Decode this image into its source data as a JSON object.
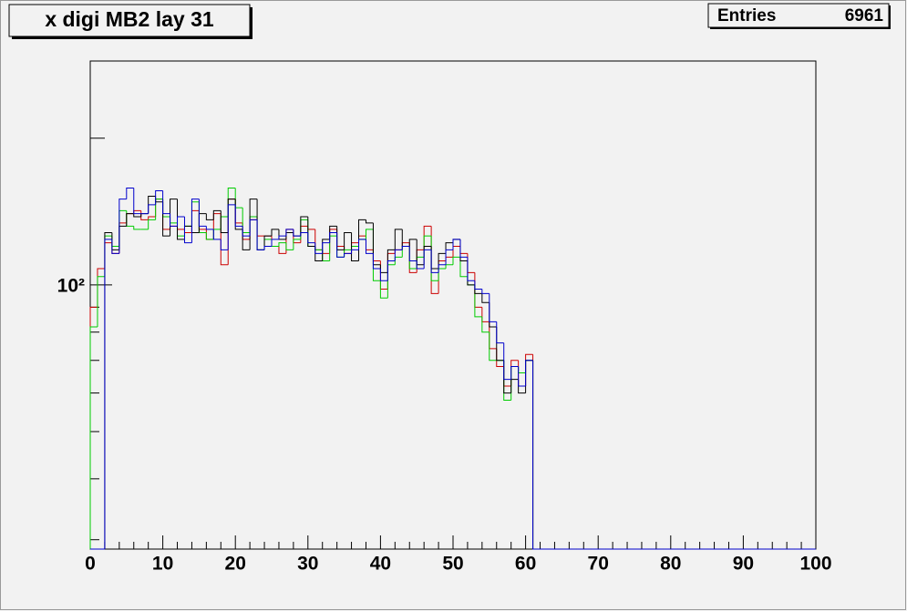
{
  "chart_data": {
    "type": "histogram",
    "title": "x digi MB2 lay 31",
    "entries_label": "Entries",
    "entries": 6961,
    "log_y": true,
    "xlim": [
      0,
      100
    ],
    "xticks": [
      0,
      10,
      20,
      30,
      40,
      50,
      60,
      70,
      80,
      90,
      100
    ],
    "ylim": [
      28.7,
      288
    ],
    "yticks": [
      {
        "value": 100,
        "label": "10²"
      }
    ],
    "bins": [
      0,
      1,
      2,
      3,
      4,
      5,
      6,
      7,
      8,
      9,
      10,
      11,
      12,
      13,
      14,
      15,
      16,
      17,
      18,
      19,
      20,
      21,
      22,
      23,
      24,
      25,
      26,
      27,
      28,
      29,
      30,
      31,
      32,
      33,
      34,
      35,
      36,
      37,
      38,
      39,
      40,
      41,
      42,
      43,
      44,
      45,
      46,
      47,
      48,
      49,
      50,
      51,
      52,
      53,
      54,
      55,
      56,
      57,
      58,
      59,
      60,
      61,
      62,
      63,
      64,
      65,
      66,
      67,
      68,
      69,
      70,
      71,
      72,
      73,
      74,
      75,
      76,
      77,
      78,
      79,
      80,
      81,
      82,
      83,
      84,
      85,
      86,
      87,
      88,
      89,
      90,
      91,
      92,
      93,
      94,
      95,
      96,
      97,
      98,
      99,
      100
    ],
    "series": [
      {
        "color": "#cc0000",
        "values": [
          90,
          108,
          122,
          116,
          134,
          140,
          142,
          136,
          138,
          150,
          130,
          132,
          130,
          128,
          142,
          130,
          124,
          140,
          110,
          150,
          134,
          124,
          136,
          126,
          126,
          120,
          116,
          130,
          122,
          132,
          130,
          118,
          116,
          130,
          120,
          116,
          122,
          126,
          118,
          112,
          98,
          116,
          118,
          122,
          106,
          118,
          132,
          96,
          112,
          114,
          120,
          116,
          106,
          90,
          84,
          74,
          68,
          62,
          70,
          62,
          72,
          0,
          0,
          0,
          0,
          0,
          0,
          0,
          0,
          0,
          0,
          0,
          0,
          0,
          0,
          0,
          0,
          0,
          0,
          0,
          0,
          0,
          0,
          0,
          0,
          0,
          0,
          0,
          0,
          0,
          0,
          0,
          0,
          0,
          0,
          0,
          0,
          0,
          0,
          0
        ]
      },
      {
        "color": "#00cc00",
        "values": [
          82,
          104,
          126,
          120,
          142,
          132,
          130,
          130,
          136,
          150,
          138,
          134,
          126,
          132,
          148,
          128,
          124,
          130,
          138,
          158,
          144,
          128,
          138,
          118,
          124,
          120,
          122,
          118,
          124,
          136,
          120,
          118,
          112,
          126,
          114,
          118,
          120,
          124,
          130,
          102,
          94,
          110,
          114,
          120,
          108,
          114,
          126,
          102,
          108,
          110,
          114,
          104,
          100,
          86,
          80,
          70,
          70,
          58,
          68,
          66,
          70,
          0,
          0,
          0,
          0,
          0,
          0,
          0,
          0,
          0,
          0,
          0,
          0,
          0,
          0,
          0,
          0,
          0,
          0,
          0,
          0,
          0,
          0,
          0,
          0,
          0,
          0,
          0,
          0,
          0,
          0,
          0,
          0,
          0,
          0,
          0,
          0,
          0,
          0,
          0
        ]
      },
      {
        "color": "#000000",
        "values": [
          0,
          0,
          128,
          118,
          132,
          140,
          138,
          140,
          152,
          148,
          126,
          150,
          124,
          132,
          128,
          140,
          136,
          142,
          128,
          150,
          130,
          118,
          150,
          118,
          126,
          130,
          124,
          128,
          126,
          138,
          120,
          112,
          124,
          132,
          118,
          128,
          112,
          136,
          134,
          110,
          106,
          118,
          130,
          120,
          124,
          110,
          120,
          108,
          116,
          122,
          124,
          112,
          100,
          96,
          92,
          82,
          70,
          60,
          64,
          60,
          70,
          0,
          0,
          0,
          0,
          0,
          0,
          0,
          0,
          0,
          0,
          0,
          0,
          0,
          0,
          0,
          0,
          0,
          0,
          0,
          0,
          0,
          0,
          0,
          0,
          0,
          0,
          0,
          0,
          0,
          0,
          0,
          0,
          0,
          0,
          0,
          0,
          0,
          0,
          0
        ]
      },
      {
        "color": "#0000cc",
        "values": [
          0,
          0,
          124,
          116,
          150,
          158,
          140,
          140,
          146,
          156,
          140,
          132,
          138,
          122,
          150,
          132,
          130,
          124,
          118,
          146,
          132,
          126,
          136,
          118,
          120,
          124,
          126,
          130,
          126,
          128,
          122,
          116,
          122,
          128,
          114,
          116,
          118,
          124,
          116,
          108,
          102,
          112,
          118,
          120,
          112,
          108,
          118,
          106,
          110,
          118,
          124,
          114,
          102,
          98,
          96,
          84,
          76,
          64,
          68,
          62,
          70,
          0,
          0,
          0,
          0,
          0,
          0,
          0,
          0,
          0,
          0,
          0,
          0,
          0,
          0,
          0,
          0,
          0,
          0,
          0,
          0,
          0,
          0,
          0,
          0,
          0,
          0,
          0,
          0,
          0,
          0,
          0,
          0,
          0,
          0,
          0,
          0,
          0,
          0,
          0
        ]
      }
    ]
  }
}
